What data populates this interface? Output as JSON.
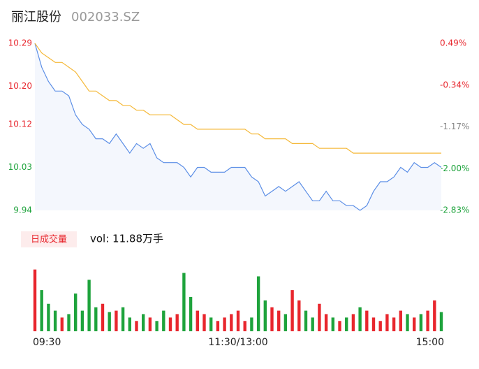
{
  "chart_data": {
    "type": "stock-intraday",
    "title": "丽江股份",
    "subtitle": "002033.SZ",
    "ylim": [
      9.94,
      10.29
    ],
    "yticks": [
      {
        "value": 10.29,
        "label": "10.29"
      },
      {
        "value": 10.2,
        "label": "10.20"
      },
      10.12,
      10.03,
      9.94
    ],
    "y2lim": [
      -2.83,
      0.49
    ],
    "y2ticks": [
      {
        "value": 0.49,
        "label": "0.49%"
      },
      {
        "value": -0.34,
        "label": "-0.34%"
      },
      {
        "value": -1.17,
        "label": "-1.17%"
      },
      {
        "value": -2,
        "label": "-2.00%"
      },
      {
        "value": -2.83,
        "label": "-2.83%"
      }
    ],
    "xlim": [
      0,
      60
    ],
    "xticks": [
      {
        "value": 0,
        "label": "09:30"
      },
      {
        "value": 30,
        "label": "11:30/13:00"
      },
      {
        "value": 60,
        "label": "15:00"
      }
    ],
    "up_color": "#e8262d",
    "down_color": "#1ea33c",
    "flat_color": "#888888",
    "series": [
      {
        "color": "#5b8ee6",
        "values": [
          10.29,
          10.24,
          10.21,
          10.19,
          10.19,
          10.18,
          10.14,
          10.12,
          10.11,
          10.09,
          10.09,
          10.08,
          10.1,
          10.08,
          10.06,
          10.08,
          10.07,
          10.08,
          10.05,
          10.04,
          10.04,
          10.04,
          10.03,
          10.01,
          10.03,
          10.03,
          10.02,
          10.02,
          10.02,
          10.03,
          10.03,
          10.03,
          10.01,
          10,
          9.97,
          9.98,
          9.99,
          9.98,
          9.99,
          10,
          9.98,
          9.96,
          9.96,
          9.98,
          9.96,
          9.96,
          9.95,
          9.95,
          9.94,
          9.95,
          9.98,
          10,
          10,
          10.01,
          10.03,
          10.02,
          10.04,
          10.03,
          10.03,
          10.04,
          10.03
        ]
      },
      {
        "color": "#f5b93a",
        "values": [
          10.29,
          10.27,
          10.26,
          10.25,
          10.25,
          10.24,
          10.23,
          10.21,
          10.19,
          10.19,
          10.18,
          10.17,
          10.17,
          10.16,
          10.16,
          10.15,
          10.15,
          10.14,
          10.14,
          10.14,
          10.14,
          10.13,
          10.12,
          10.12,
          10.11,
          10.11,
          10.11,
          10.11,
          10.11,
          10.11,
          10.11,
          10.11,
          10.1,
          10.1,
          10.09,
          10.09,
          10.09,
          10.09,
          10.08,
          10.08,
          10.08,
          10.08,
          10.07,
          10.07,
          10.07,
          10.07,
          10.07,
          10.06,
          10.06,
          10.06,
          10.06,
          10.06,
          10.06,
          10.06,
          10.06,
          10.06,
          10.06,
          10.06,
          10.06,
          10.06,
          10.06
        ]
      }
    ],
    "volume": {
      "badge": "日成交量",
      "label": "vol: 11.88万手",
      "ylim": [
        0,
        110
      ],
      "values": [
        90,
        60,
        40,
        30,
        20,
        25,
        55,
        30,
        75,
        35,
        40,
        28,
        30,
        35,
        20,
        15,
        25,
        20,
        15,
        30,
        20,
        25,
        85,
        50,
        30,
        25,
        20,
        15,
        20,
        25,
        30,
        15,
        20,
        80,
        45,
        35,
        30,
        25,
        60,
        45,
        30,
        20,
        40,
        25,
        20,
        15,
        20,
        25,
        35,
        30,
        20,
        15,
        25,
        20,
        30,
        25,
        20,
        25,
        30,
        45,
        28
      ]
    }
  }
}
